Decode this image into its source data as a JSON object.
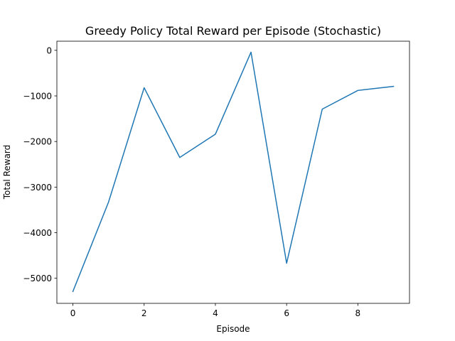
{
  "chart_data": {
    "type": "line",
    "title": "Greedy Policy Total Reward per Episode (Stochastic)",
    "xlabel": "Episode",
    "ylabel": "Total Reward",
    "x": [
      0,
      1,
      2,
      3,
      4,
      5,
      6,
      7,
      8,
      9
    ],
    "series": [
      {
        "values": [
          -5290,
          -3330,
          -820,
          -2350,
          -1840,
          -40,
          -4670,
          -1290,
          -880,
          -790
        ],
        "color": "#1f77b4"
      }
    ],
    "xlim": [
      -0.45,
      9.45
    ],
    "ylim": [
      -5550,
      200
    ],
    "xticks": [
      0,
      2,
      4,
      6,
      8
    ],
    "yticks": [
      -5000,
      -4000,
      -3000,
      -2000,
      -1000,
      0
    ],
    "xtick_labels": [
      "0",
      "2",
      "4",
      "6",
      "8"
    ],
    "ytick_labels": [
      "−5000",
      "−4000",
      "−3000",
      "−2000",
      "−1000",
      "0"
    ],
    "grid": false,
    "legend": false
  }
}
